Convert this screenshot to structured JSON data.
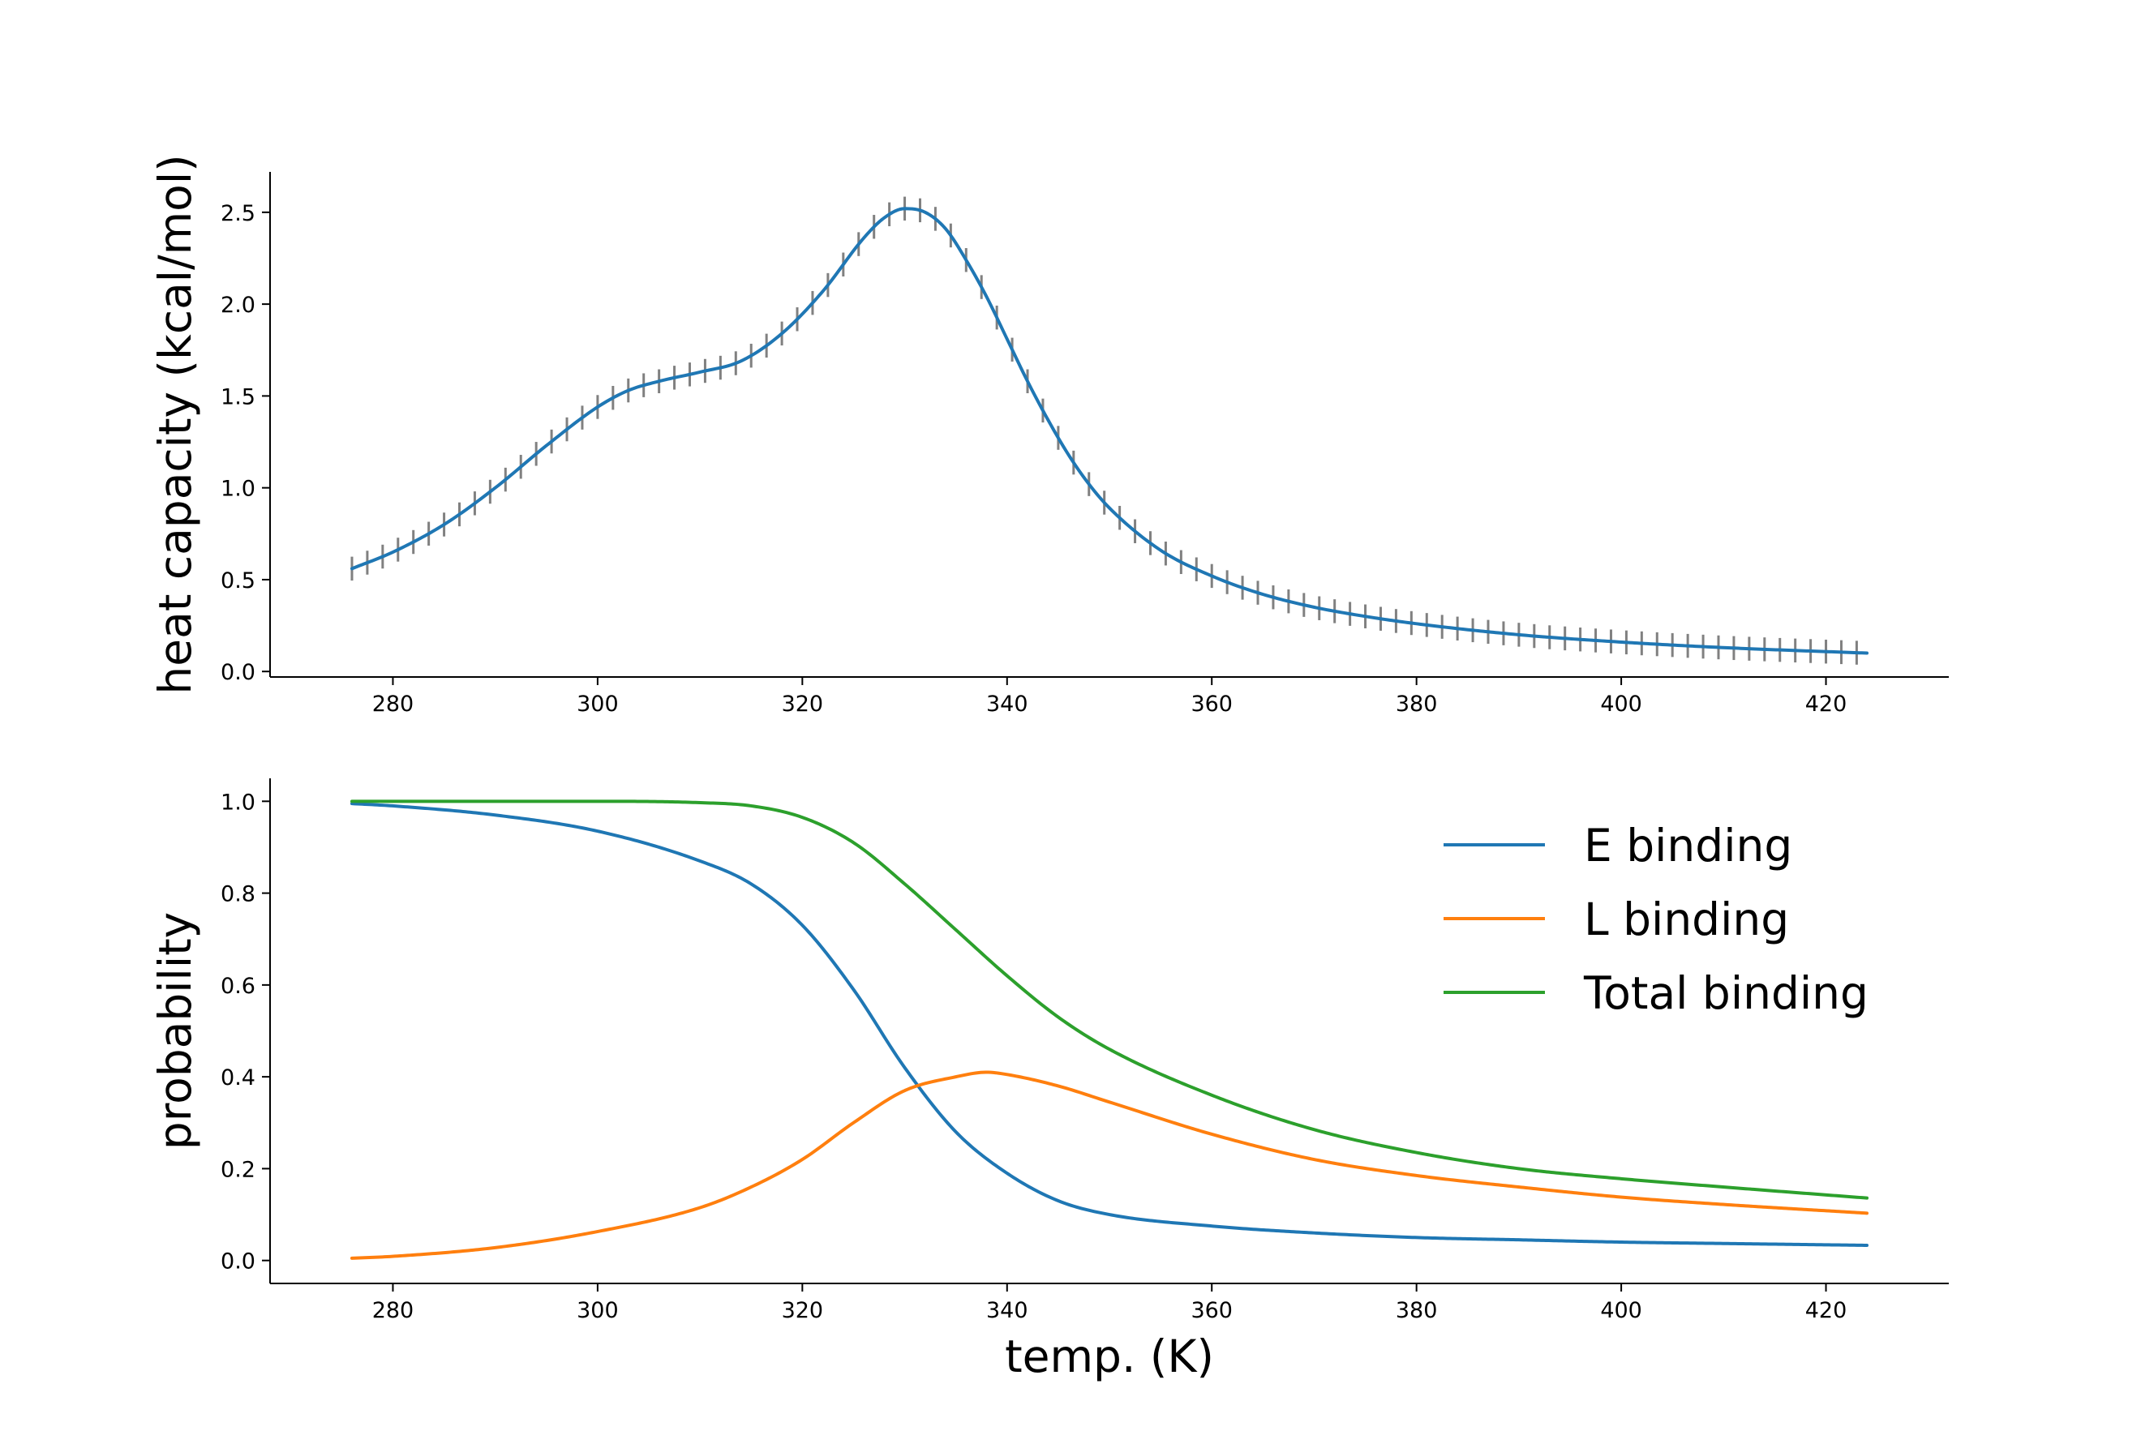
{
  "figure": {
    "shared_xlabel": "temp. (K)"
  },
  "chart_data": [
    {
      "type": "line",
      "subplot": "top",
      "title": "",
      "xlabel": "",
      "ylabel": "heat capacity (kcal/mol)",
      "xlim": [
        268,
        432
      ],
      "ylim": [
        -0.03,
        2.72
      ],
      "xticks": [
        280,
        300,
        320,
        340,
        360,
        380,
        400,
        420
      ],
      "yticks": [
        0.0,
        0.5,
        1.0,
        1.5,
        2.0,
        2.5
      ],
      "ytick_labels": [
        "0.0",
        "0.5",
        "1.0",
        "1.5",
        "2.0",
        "2.5"
      ],
      "grid": false,
      "legend": null,
      "x_start": 276,
      "x_step": 1.5,
      "series": [
        {
          "color": "#1f77b4",
          "error_bar_color": "#808080",
          "error_bar_halfwidth": 0.065,
          "x": [
            276,
            280,
            285,
            290,
            295,
            300,
            303,
            306,
            310,
            314,
            318,
            322,
            326,
            328,
            330,
            332,
            334,
            336,
            338,
            340,
            342,
            344,
            346,
            348,
            350,
            355,
            360,
            365,
            370,
            375,
            380,
            390,
            400,
            410,
            424
          ],
          "values": [
            0.56,
            0.65,
            0.8,
            1.0,
            1.23,
            1.44,
            1.53,
            1.58,
            1.63,
            1.69,
            1.84,
            2.07,
            2.36,
            2.47,
            2.52,
            2.5,
            2.41,
            2.24,
            2.04,
            1.81,
            1.58,
            1.37,
            1.18,
            1.02,
            0.89,
            0.66,
            0.52,
            0.42,
            0.35,
            0.3,
            0.26,
            0.2,
            0.16,
            0.13,
            0.1
          ]
        }
      ]
    },
    {
      "type": "line",
      "subplot": "bottom",
      "title": "",
      "xlabel": "temp. (K)",
      "ylabel": "probability",
      "xlim": [
        268,
        432
      ],
      "ylim": [
        -0.05,
        1.05
      ],
      "xticks": [
        280,
        300,
        320,
        340,
        360,
        380,
        400,
        420
      ],
      "yticks": [
        0.0,
        0.2,
        0.4,
        0.6,
        0.8,
        1.0
      ],
      "ytick_labels": [
        "0.0",
        "0.2",
        "0.4",
        "0.6",
        "0.8",
        "1.0"
      ],
      "grid": false,
      "legend": "top-right",
      "series": [
        {
          "name": "E binding",
          "color": "#1f77b4",
          "x": [
            276,
            280,
            290,
            300,
            310,
            315,
            320,
            325,
            330,
            335,
            340,
            345,
            350,
            360,
            370,
            380,
            390,
            400,
            410,
            424
          ],
          "values": [
            0.995,
            0.99,
            0.97,
            0.935,
            0.87,
            0.82,
            0.73,
            0.59,
            0.42,
            0.28,
            0.19,
            0.13,
            0.1,
            0.075,
            0.06,
            0.05,
            0.045,
            0.04,
            0.037,
            0.033
          ]
        },
        {
          "name": "L binding",
          "color": "#ff7f0e",
          "x": [
            276,
            280,
            290,
            300,
            310,
            315,
            320,
            325,
            330,
            335,
            338,
            340,
            345,
            350,
            360,
            370,
            380,
            390,
            400,
            410,
            424
          ],
          "values": [
            0.005,
            0.009,
            0.028,
            0.063,
            0.115,
            0.16,
            0.22,
            0.3,
            0.37,
            0.4,
            0.41,
            0.405,
            0.38,
            0.345,
            0.275,
            0.22,
            0.185,
            0.16,
            0.138,
            0.122,
            0.103
          ]
        },
        {
          "name": "Total binding",
          "color": "#2ca02c",
          "x": [
            276,
            290,
            300,
            310,
            315,
            320,
            325,
            330,
            335,
            340,
            345,
            350,
            360,
            370,
            380,
            390,
            400,
            410,
            424
          ],
          "values": [
            1.0,
            1.0,
            1.0,
            0.997,
            0.99,
            0.965,
            0.91,
            0.82,
            0.72,
            0.62,
            0.53,
            0.46,
            0.36,
            0.285,
            0.235,
            0.2,
            0.178,
            0.16,
            0.136
          ]
        }
      ]
    }
  ]
}
